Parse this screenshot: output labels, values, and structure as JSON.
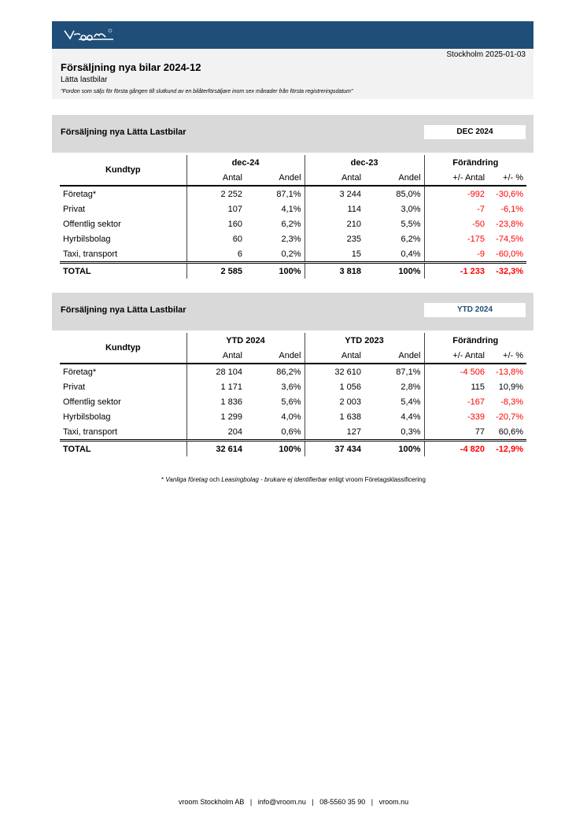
{
  "header": {
    "brand": "vroom",
    "date": "Stockholm 2025-01-03",
    "title": "Försäljning nya bilar 2024-12",
    "subtitle": "Lätta lastbilar",
    "definition": "\"Fordon som säljs för första gången till slutkund av en bilåterförsäljare inom sex månader från första registreringsdatum\""
  },
  "colors": {
    "banner": "#1f4e79",
    "negative": "#ff0000",
    "band": "#d9d9d9"
  },
  "sections": [
    {
      "title": "Försäljning nya Lätta Lastbilar",
      "badge": "DEC 2024",
      "badge_color": "#000000",
      "kundtyp": "Kundtyp",
      "period1": "dec-24",
      "period2": "dec-23",
      "change": "Förändring",
      "subheaders": [
        "Antal",
        "Andel",
        "Antal",
        "Andel",
        "+/- Antal",
        "+/- %"
      ],
      "rows": [
        [
          "Företag*",
          "2 252",
          "87,1%",
          "3 244",
          "85,0%",
          "-992",
          "-30,6%"
        ],
        [
          "Privat",
          "107",
          "4,1%",
          "114",
          "3,0%",
          "-7",
          "-6,1%"
        ],
        [
          "Offentlig sektor",
          "160",
          "6,2%",
          "210",
          "5,5%",
          "-50",
          "-23,8%"
        ],
        [
          "Hyrbilsbolag",
          "60",
          "2,3%",
          "235",
          "6,2%",
          "-175",
          "-74,5%"
        ],
        [
          "Taxi, transport",
          "6",
          "0,2%",
          "15",
          "0,4%",
          "-9",
          "-60,0%"
        ]
      ],
      "total": [
        "TOTAL",
        "2 585",
        "100%",
        "3 818",
        "100%",
        "-1 233",
        "-32,3%"
      ]
    },
    {
      "title": "Försäljning nya Lätta Lastbilar",
      "badge": "YTD 2024",
      "badge_color": "#1f4e79",
      "kundtyp": "Kundtyp",
      "period1": "YTD 2024",
      "period2": "YTD 2023",
      "change": "Förändring",
      "subheaders": [
        "Antal",
        "Andel",
        "Antal",
        "Andel",
        "+/- Antal",
        "+/- %"
      ],
      "rows": [
        [
          "Företag*",
          "28 104",
          "86,2%",
          "32 610",
          "87,1%",
          "-4 506",
          "-13,8%"
        ],
        [
          "Privat",
          "1 171",
          "3,6%",
          "1 056",
          "2,8%",
          "115",
          "10,9%"
        ],
        [
          "Offentlig sektor",
          "1 836",
          "5,6%",
          "2 003",
          "5,4%",
          "-167",
          "-8,3%"
        ],
        [
          "Hyrbilsbolag",
          "1 299",
          "4,0%",
          "1 638",
          "4,4%",
          "-339",
          "-20,7%"
        ],
        [
          "Taxi, transport",
          "204",
          "0,6%",
          "127",
          "0,3%",
          "77",
          "60,6%"
        ]
      ],
      "total": [
        "TOTAL",
        "32 614",
        "100%",
        "37 434",
        "100%",
        "-4 820",
        "-12,9%"
      ]
    }
  ],
  "footnote": {
    "star": "* ",
    "a": "Vanliga företag",
    "b": " och ",
    "c": "Leasingbolag - brukare ej identifierbar",
    "d": " enligt vroom Företagsklassificering"
  },
  "footer": "vroom Stockholm AB   |   info@vroom.nu   |   08-5560 35 90   |   vroom.nu"
}
